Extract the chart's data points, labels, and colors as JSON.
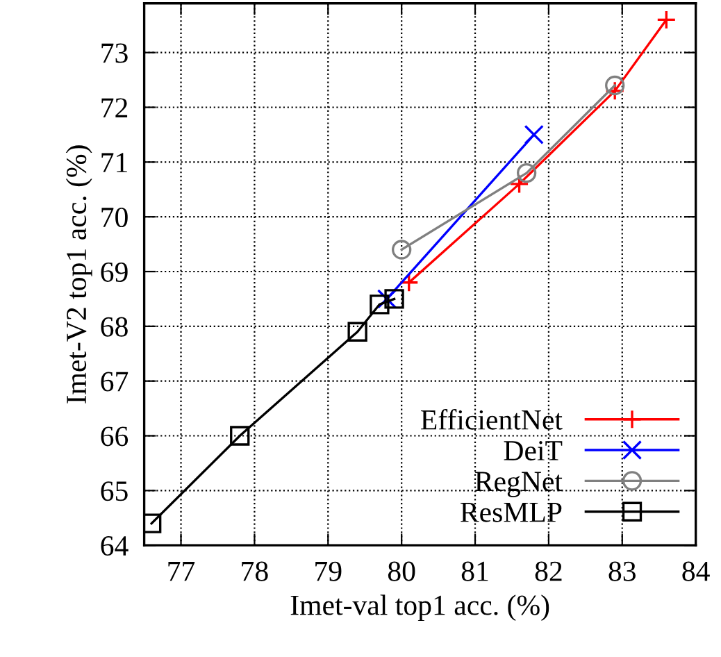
{
  "chart_data": {
    "type": "line",
    "xlabel": "Imet-val top1 acc. (%)",
    "ylabel": "Imet-V2 top1 acc. (%)",
    "xlim": [
      76.5,
      84
    ],
    "ylim": [
      64,
      73.9
    ],
    "xticks": [
      77,
      78,
      79,
      80,
      81,
      82,
      83,
      84
    ],
    "yticks": [
      64,
      65,
      66,
      67,
      68,
      69,
      70,
      71,
      72,
      73
    ],
    "grid": true,
    "legend": "bottom right",
    "line_style": "solid",
    "series": [
      {
        "name": "EfficientNet",
        "color": "#ff0000",
        "marker": "plus",
        "x": [
          80.1,
          81.6,
          82.9,
          83.6
        ],
        "values": [
          68.8,
          70.6,
          72.3,
          73.6
        ]
      },
      {
        "name": "DeiT",
        "color": "#0000ff",
        "marker": "cross",
        "x": [
          79.8,
          81.8
        ],
        "values": [
          68.5,
          71.5
        ]
      },
      {
        "name": "RegNet",
        "color": "#808080",
        "marker": "circle",
        "x": [
          80.0,
          81.7,
          82.9
        ],
        "values": [
          69.4,
          70.8,
          72.4
        ]
      },
      {
        "name": "ResMLP",
        "color": "#000000",
        "marker": "square",
        "x": [
          76.6,
          77.8,
          79.4,
          79.7,
          79.9
        ],
        "values": [
          64.4,
          66.0,
          67.9,
          68.4,
          68.5
        ]
      }
    ]
  }
}
